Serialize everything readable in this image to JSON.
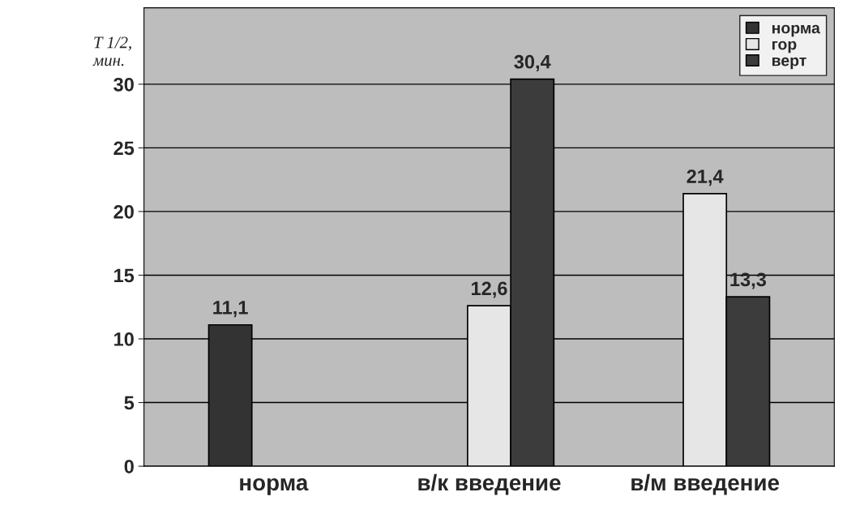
{
  "chart_data": {
    "type": "bar",
    "ylabel": "T 1/2,\nмин.",
    "categories": [
      "норма",
      "в/к введение",
      "в/м введение"
    ],
    "series": [
      {
        "name": "норма",
        "color": "#333333",
        "values": [
          11.1,
          null,
          null
        ],
        "value_labels": [
          "11,1",
          null,
          null
        ]
      },
      {
        "name": "гор",
        "color": "#e6e6e6",
        "values": [
          null,
          12.6,
          21.4
        ],
        "value_labels": [
          null,
          "12,6",
          "21,4"
        ]
      },
      {
        "name": "верт",
        "color": "#3c3c3c",
        "values": [
          null,
          30.4,
          13.3
        ],
        "value_labels": [
          null,
          "30,4",
          "13,3"
        ]
      }
    ],
    "ylim": [
      0,
      36
    ],
    "yticks": [
      0,
      5,
      10,
      15,
      20,
      25,
      30
    ],
    "grid": "y",
    "legend": "top right"
  }
}
